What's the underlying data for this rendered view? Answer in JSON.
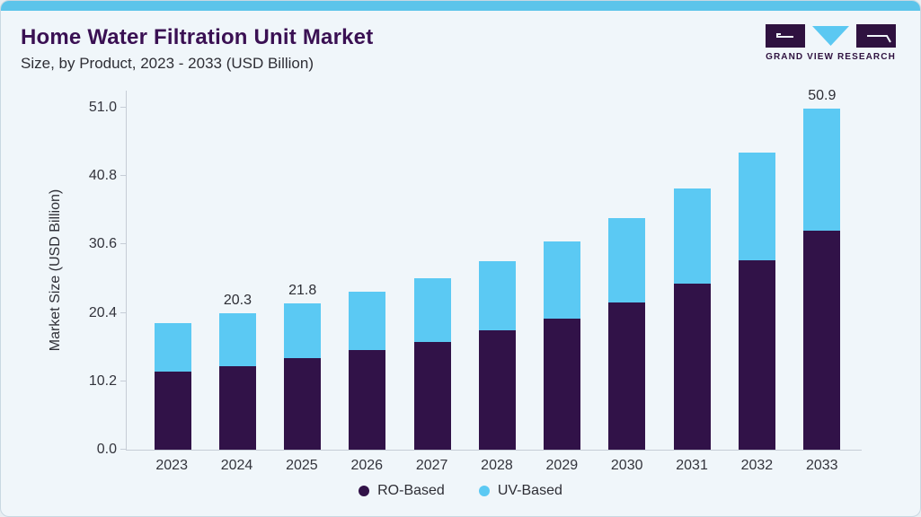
{
  "page": {
    "title": "Home Water Filtration Unit Market",
    "subtitle": "Size, by Product, 2023 - 2033 (USD Billion)"
  },
  "logo": {
    "name": "Grand View Research logo",
    "text": "GRAND VIEW RESEARCH",
    "purple": "#2f1240",
    "blue": "#5bc8f2"
  },
  "colors": {
    "background": "#f0f6fa",
    "top_accent": "#5cc4ea",
    "title": "#3a1053",
    "axis_line": "#c6cdd6",
    "axis_text": "#33343c",
    "ro_based": "#311248",
    "uv_based": "#5bc9f3"
  },
  "chart_data": {
    "type": "bar",
    "stacked": true,
    "title": "Home Water Filtration Unit Market",
    "subtitle": "Size, by Product, 2023 - 2033 (USD Billion)",
    "ylabel": "Market Size (USD Billion)",
    "xlabel": "",
    "ylim": [
      0,
      51.0
    ],
    "ytick_labels": [
      "0.0",
      "10.2",
      "20.4",
      "30.6",
      "40.8",
      "51.0"
    ],
    "ytick_values": [
      0,
      10.2,
      20.4,
      30.6,
      40.8,
      51.0
    ],
    "grid": false,
    "legend_position": "bottom",
    "categories": [
      "2023",
      "2024",
      "2025",
      "2026",
      "2027",
      "2028",
      "2029",
      "2030",
      "2031",
      "2032",
      "2033"
    ],
    "series": [
      {
        "name": "RO-Based",
        "color": "#311248",
        "values": [
          11.7,
          12.5,
          13.6,
          14.8,
          16.1,
          17.8,
          19.5,
          21.9,
          24.7,
          28.2,
          32.6
        ]
      },
      {
        "name": "UV-Based",
        "color": "#5bc9f3",
        "values": [
          7.2,
          7.8,
          8.2,
          8.8,
          9.5,
          10.3,
          11.5,
          12.7,
          14.3,
          16.1,
          18.3
        ]
      }
    ],
    "totals": [
      18.9,
      20.3,
      21.8,
      23.6,
      25.6,
      28.1,
      31.0,
      34.6,
      39.0,
      44.3,
      50.9
    ],
    "bar_total_labels": [
      null,
      "20.3",
      "21.8",
      null,
      null,
      null,
      null,
      null,
      null,
      null,
      "50.9"
    ],
    "legend": [
      "RO-Based",
      "UV-Based"
    ]
  }
}
